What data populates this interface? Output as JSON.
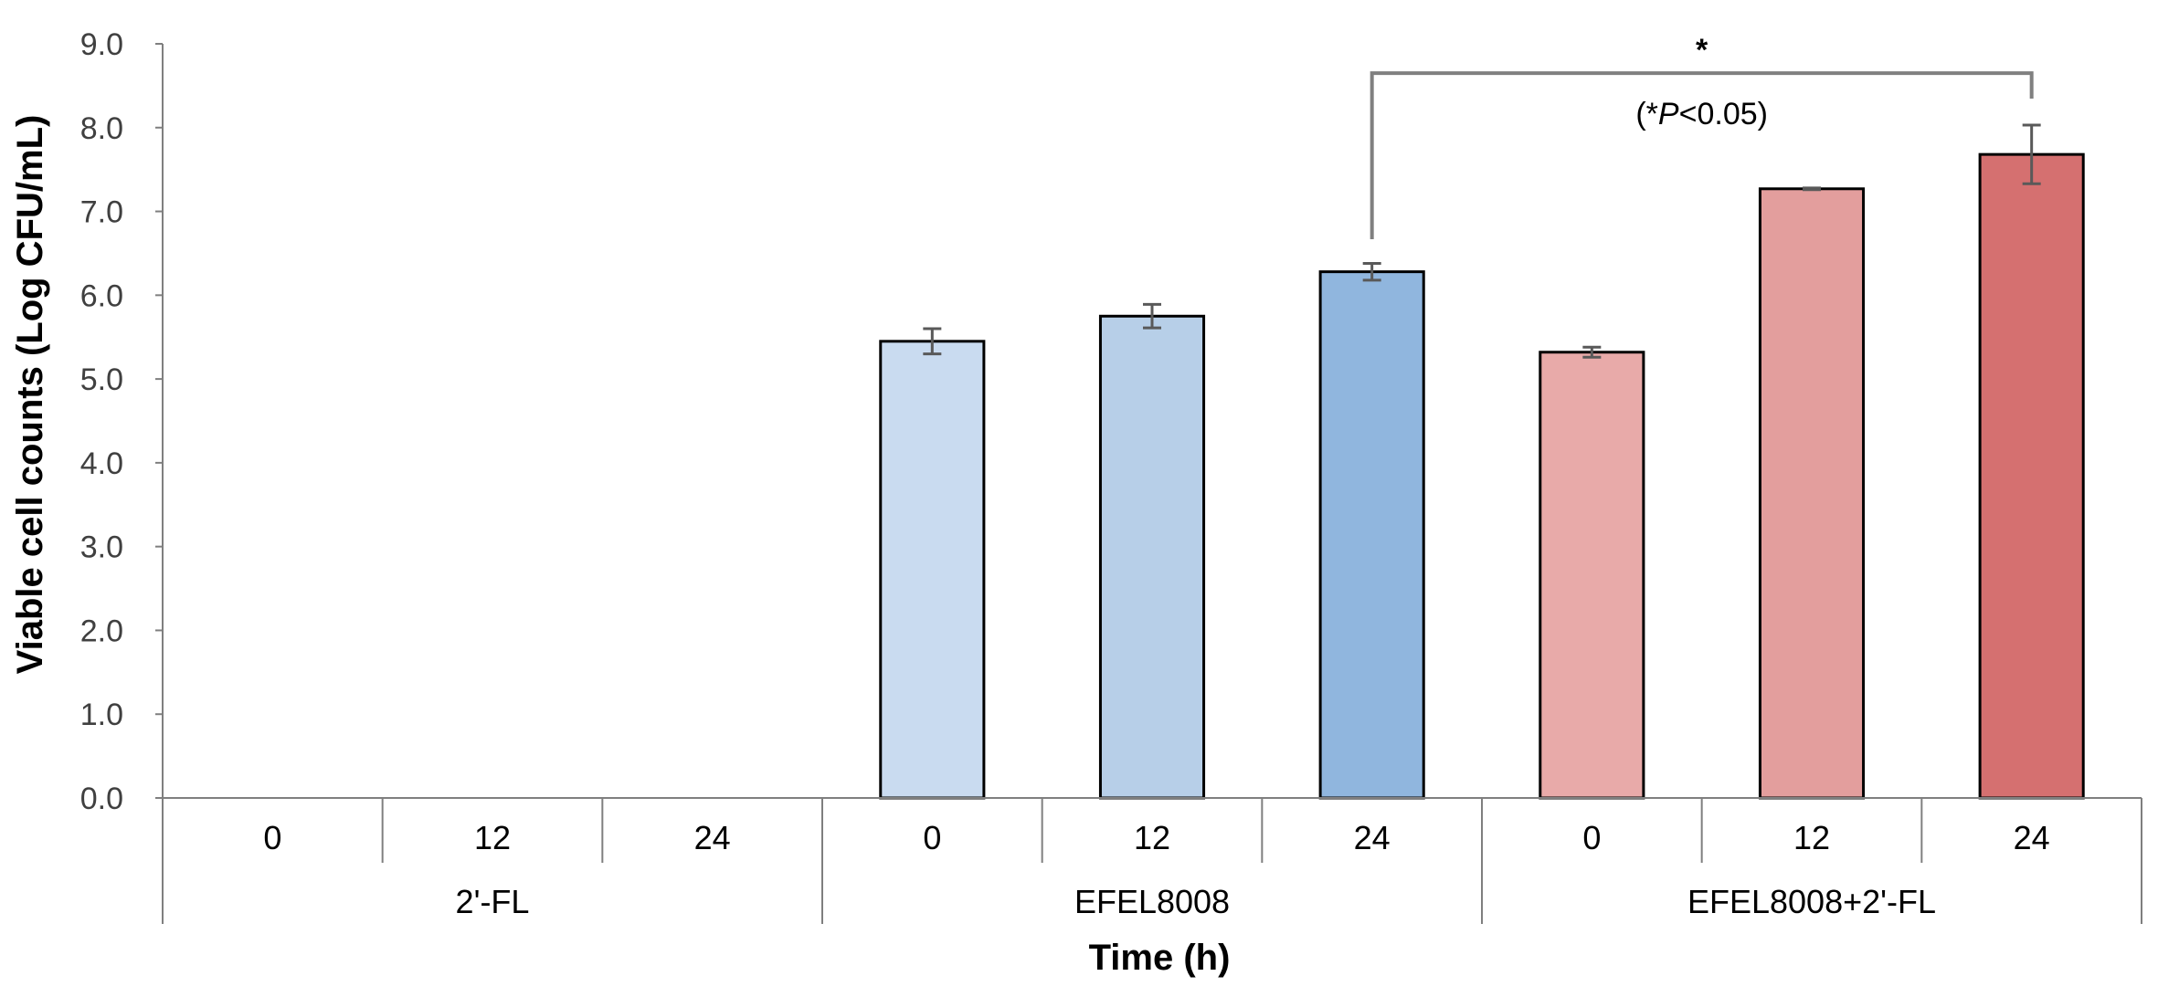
{
  "chart_data": {
    "type": "bar",
    "xlabel": "Time (h)",
    "ylabel": "Viable cell counts (Log CFU/mL)",
    "ylim": [
      0,
      9
    ],
    "yticks": [
      "0.0",
      "1.0",
      "2.0",
      "3.0",
      "4.0",
      "5.0",
      "6.0",
      "7.0",
      "8.0",
      "9.0"
    ],
    "grid": false,
    "groups": [
      {
        "label": "2'-FL",
        "bars": [
          {
            "time": "0",
            "value": 0,
            "error": 0,
            "color": "#ffffff"
          },
          {
            "time": "12",
            "value": 0,
            "error": 0,
            "color": "#ffffff"
          },
          {
            "time": "24",
            "value": 0,
            "error": 0,
            "color": "#ffffff"
          }
        ]
      },
      {
        "label": "EFEL8008",
        "bars": [
          {
            "time": "0",
            "value": 5.45,
            "error": 0.15,
            "color": "#c9dbf0"
          },
          {
            "time": "12",
            "value": 5.75,
            "error": 0.14,
            "color": "#b7cfe8"
          },
          {
            "time": "24",
            "value": 6.28,
            "error": 0.1,
            "color": "#90b6de"
          }
        ]
      },
      {
        "label": "EFEL8008+2'-FL",
        "bars": [
          {
            "time": "0",
            "value": 5.32,
            "error": 0.06,
            "color": "#e8aaa9"
          },
          {
            "time": "12",
            "value": 7.27,
            "error": 0.01,
            "color": "#e39e9d"
          },
          {
            "time": "24",
            "value": 7.68,
            "error": 0.35,
            "color": "#d57070"
          }
        ]
      }
    ],
    "significance": {
      "from_group": 1,
      "from_bar": 2,
      "to_group": 2,
      "to_bar": 2,
      "line_y": 8.65,
      "mark": "*",
      "note_prefix": "(*",
      "note_p": "P",
      "note_suffix": "<0.05)"
    }
  }
}
